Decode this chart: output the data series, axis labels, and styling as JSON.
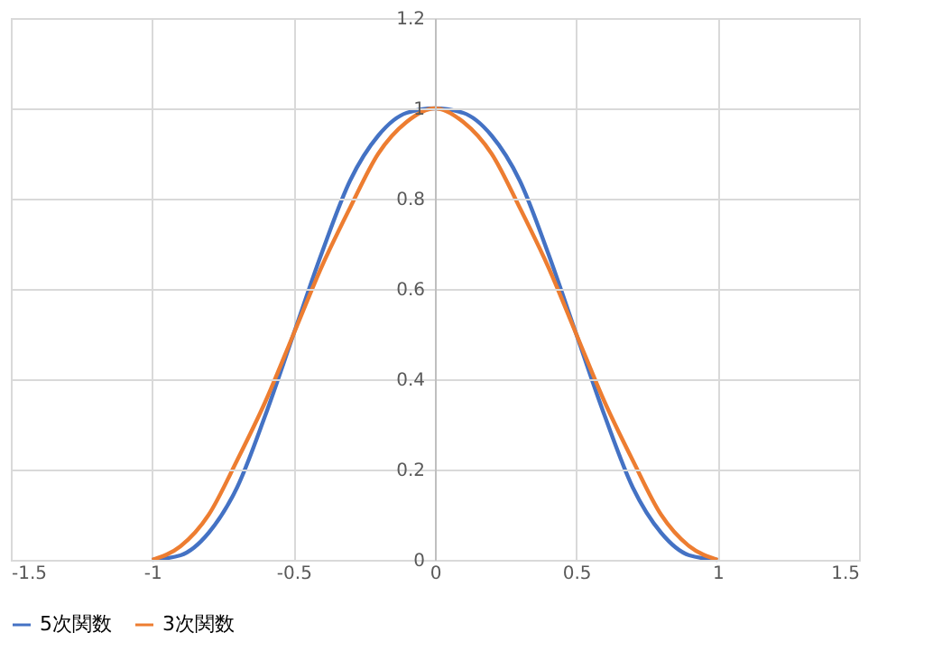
{
  "chart_data": {
    "type": "line",
    "x": [
      -1,
      -0.9,
      -0.8,
      -0.7,
      -0.6,
      -0.5,
      -0.4,
      -0.3,
      -0.2,
      -0.1,
      0,
      0.1,
      0.2,
      0.3,
      0.4,
      0.5,
      0.6,
      0.7,
      0.8,
      0.9,
      1
    ],
    "series": [
      {
        "name": "5次関数",
        "color": "#4472c4",
        "values": [
          0,
          0.01,
          0.06,
          0.16,
          0.32,
          0.5,
          0.68,
          0.84,
          0.94,
          0.99,
          1,
          0.99,
          0.94,
          0.84,
          0.68,
          0.5,
          0.32,
          0.16,
          0.06,
          0.01,
          0
        ]
      },
      {
        "name": "3次関数",
        "color": "#ed7d31",
        "values": [
          0,
          0.03,
          0.1,
          0.22,
          0.35,
          0.5,
          0.65,
          0.78,
          0.9,
          0.97,
          1,
          0.97,
          0.9,
          0.78,
          0.65,
          0.5,
          0.35,
          0.22,
          0.1,
          0.03,
          0
        ]
      }
    ],
    "xlim": [
      -1.5,
      1.5
    ],
    "xticks": [
      -1.5,
      -1,
      -0.5,
      0,
      0.5,
      1,
      1.5
    ],
    "ylim": [
      0,
      1.2
    ],
    "yticks": [
      0,
      0.2,
      0.4,
      0.6,
      0.8,
      1,
      1.2
    ],
    "grid": true,
    "legend": "bottom",
    "marker": "none",
    "line_style": "solid"
  }
}
